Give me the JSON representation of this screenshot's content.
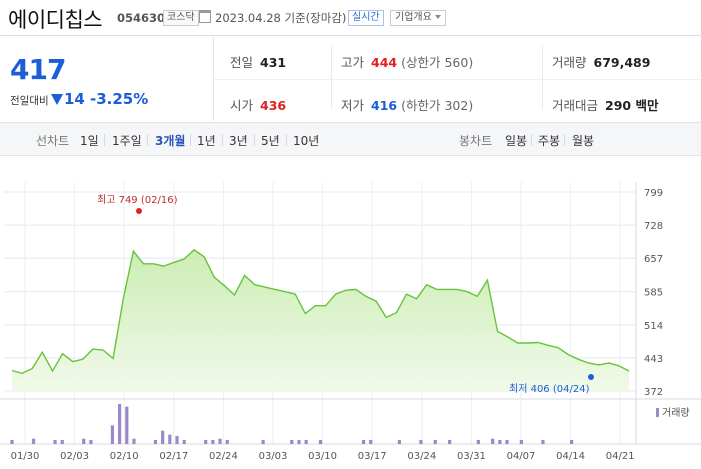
{
  "header": {
    "company_name": "에이디칩스",
    "stock_code": "054630",
    "market": "코스닥",
    "date": "2023.04.28",
    "date_suffix": "기준(장마감)",
    "realtime_badge": "실시간",
    "company_info_button": "기업개요"
  },
  "price": {
    "current": "417",
    "change_label": "전일대비",
    "change": "14",
    "change_pct": "-3.25%",
    "direction_color": "#1c5dd8"
  },
  "stats": {
    "prev_close": {
      "label": "전일",
      "value": "431"
    },
    "high": {
      "label": "고가",
      "value": "444",
      "sub": "(상한가 560)"
    },
    "volume": {
      "label": "거래량",
      "value": "679,489"
    },
    "open": {
      "label": "시가",
      "value": "436"
    },
    "low": {
      "label": "저가",
      "value": "416",
      "sub": "(하한가 302)"
    },
    "amount": {
      "label": "거래대금",
      "value": "290 백만"
    }
  },
  "tabs": {
    "line_chart_label": "선차트",
    "periods": [
      "1일",
      "1주일",
      "3개월",
      "1년",
      "3년",
      "5년",
      "10년"
    ],
    "active_period": "3개월",
    "candle_chart_label": "봉차트",
    "candle_periods": [
      "일봉",
      "주봉",
      "월봉"
    ]
  },
  "chart_data": {
    "type": "area",
    "x_tick_labels": [
      "01/30",
      "02/03",
      "02/10",
      "02/17",
      "02/24",
      "03/03",
      "03/10",
      "03/17",
      "03/24",
      "03/31",
      "04/07",
      "04/14",
      "04/21"
    ],
    "y_tick_labels": [
      "799",
      "728",
      "657",
      "585",
      "514",
      "443",
      "372"
    ],
    "ylim": [
      372,
      799
    ],
    "grid": true,
    "line_color": "#66c43a",
    "volume_color": "#9b89c9",
    "high_annotation": "최고 749 (02/16)",
    "low_annotation": "최저 406 (04/24)",
    "volume_legend": "거래량",
    "series": [
      {
        "values": [
          416,
          410,
          420,
          455,
          415,
          452,
          435,
          440,
          462,
          460,
          442,
          570,
          672,
          645,
          645,
          640,
          648,
          655,
          675,
          660,
          616,
          598,
          578,
          620,
          600,
          595,
          590,
          585,
          580,
          538,
          555,
          555,
          580,
          588,
          590,
          575,
          565,
          530,
          540,
          580,
          570,
          600,
          590,
          590,
          590,
          585,
          575,
          610,
          500,
          488,
          475,
          475,
          476,
          470,
          465,
          450,
          440,
          432,
          428,
          432,
          426,
          415
        ]
      }
    ],
    "volume": [
      3,
      0,
      0,
      4,
      0,
      0,
      3,
      3,
      0,
      0,
      4,
      3,
      0,
      0,
      14,
      30,
      28,
      4,
      0,
      0,
      3,
      10,
      7,
      6,
      3,
      0,
      0,
      3,
      3,
      4,
      3,
      0,
      0,
      0,
      0,
      3,
      0,
      0,
      0,
      3,
      3,
      3,
      0,
      3,
      0,
      0,
      0,
      0,
      0,
      3,
      3,
      0,
      0,
      0,
      3,
      0,
      0,
      3,
      0,
      3,
      0,
      3,
      0,
      0,
      0,
      3,
      0,
      4,
      3,
      3,
      0,
      3,
      0,
      0,
      3,
      0,
      0,
      0,
      3,
      0,
      0,
      0,
      0,
      0,
      0,
      0,
      0
    ]
  }
}
